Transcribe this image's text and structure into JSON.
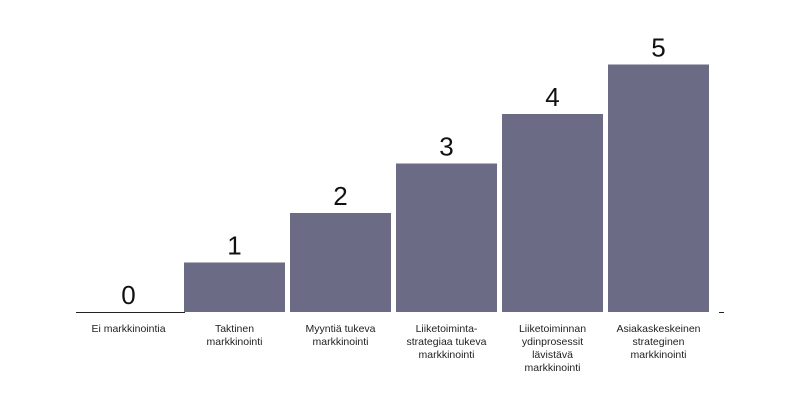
{
  "chart_data": {
    "type": "bar",
    "title": "",
    "xlabel": "",
    "ylabel": "",
    "ylim": [
      0,
      5
    ],
    "grid": false,
    "legend": "none",
    "categories": [
      [
        "Ei markkinointia"
      ],
      [
        "Taktinen",
        "markkinointi"
      ],
      [
        "Myyntiä tukeva",
        "markkinointi"
      ],
      [
        "Liiketoiminta-",
        "strategiaa tukeva",
        "markkinointi"
      ],
      [
        "Liiketoiminnan",
        "ydinprosessit",
        "lävistävä",
        "markkinointi"
      ],
      [
        "Asiakaskeskeinen",
        "strateginen",
        "markkinointi"
      ]
    ],
    "values": [
      0,
      1,
      2,
      3,
      4,
      5
    ],
    "data_labels": [
      "0",
      "1",
      "2",
      "3",
      "4",
      "5"
    ],
    "colors": {
      "bar": "#6b6b85",
      "baseline": "#222222",
      "text": "#111111"
    }
  }
}
